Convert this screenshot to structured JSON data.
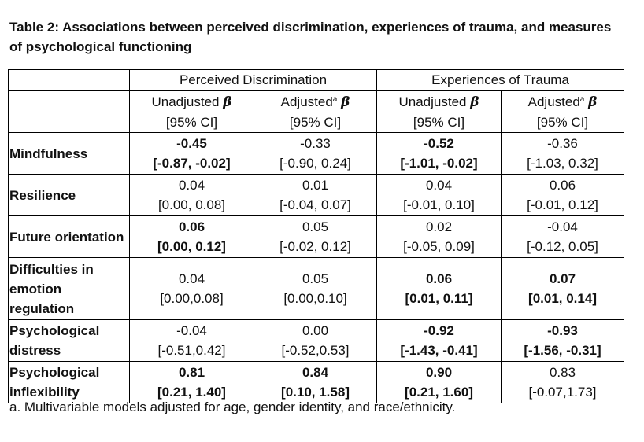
{
  "caption": "Table 2: Associations between perceived discrimination, experiences of trauma, and measures of psychological functioning",
  "groups": [
    "Perceived Discrimination",
    "Experiences of Trauma"
  ],
  "subheaders": {
    "unadjusted": "Unadjusted",
    "adjusted": "Adjusted",
    "adjusted_sup": "a",
    "beta": "β",
    "ci": "[95% CI]"
  },
  "rows": [
    {
      "label": "Mindfulness",
      "cells": [
        {
          "est": "-0.45",
          "ci": "[-0.87, -0.02]",
          "bold": true
        },
        {
          "est": "-0.33",
          "ci": "[-0.90, 0.24]",
          "bold": false
        },
        {
          "est": "-0.52",
          "ci": "[-1.01, -0.02]",
          "bold": true
        },
        {
          "est": "-0.36",
          "ci": "[-1.03, 0.32]",
          "bold": false
        }
      ]
    },
    {
      "label": "Resilience",
      "cells": [
        {
          "est": "0.04",
          "ci": "[0.00, 0.08]",
          "bold": false
        },
        {
          "est": "0.01",
          "ci": "[-0.04, 0.07]",
          "bold": false
        },
        {
          "est": "0.04",
          "ci": "[-0.01, 0.10]",
          "bold": false
        },
        {
          "est": "0.06",
          "ci": "[-0.01, 0.12]",
          "bold": false
        }
      ]
    },
    {
      "label": "Future orientation",
      "cells": [
        {
          "est": "0.06",
          "ci": "[0.00, 0.12]",
          "bold": true
        },
        {
          "est": "0.05",
          "ci": "[-0.02, 0.12]",
          "bold": false
        },
        {
          "est": "0.02",
          "ci": "[-0.05, 0.09]",
          "bold": false
        },
        {
          "est": "-0.04",
          "ci": "[-0.12, 0.05]",
          "bold": false
        }
      ]
    },
    {
      "label": "Difficulties in emotion regulation",
      "cells": [
        {
          "est": "0.04",
          "ci": "[0.00,0.08]",
          "bold": false
        },
        {
          "est": "0.05",
          "ci": "[0.00,0.10]",
          "bold": false
        },
        {
          "est": "0.06",
          "ci": "[0.01, 0.11]",
          "bold": true
        },
        {
          "est": "0.07",
          "ci": "[0.01, 0.14]",
          "bold": true
        }
      ]
    },
    {
      "label": "Psychological distress",
      "cells": [
        {
          "est": "-0.04",
          "ci": "[-0.51,0.42]",
          "bold": false
        },
        {
          "est": "0.00",
          "ci": "[-0.52,0.53]",
          "bold": false
        },
        {
          "est": "-0.92",
          "ci": "[-1.43, -0.41]",
          "bold": true
        },
        {
          "est": "-0.93",
          "ci": "[-1.56, -0.31]",
          "bold": true
        }
      ]
    },
    {
      "label": "Psychological inflexibility",
      "cells": [
        {
          "est": "0.81",
          "ci": "[0.21, 1.40]",
          "bold": true
        },
        {
          "est": "0.84",
          "ci": "[0.10, 1.58]",
          "bold": true
        },
        {
          "est": "0.90",
          "ci": "[0.21, 1.60]",
          "bold": true
        },
        {
          "est": "0.83",
          "ci": "[-0.07,1.73]",
          "bold": false
        }
      ]
    }
  ],
  "footnote": "a. Multivariable models adjusted for age, gender identity, and race/ethnicity."
}
